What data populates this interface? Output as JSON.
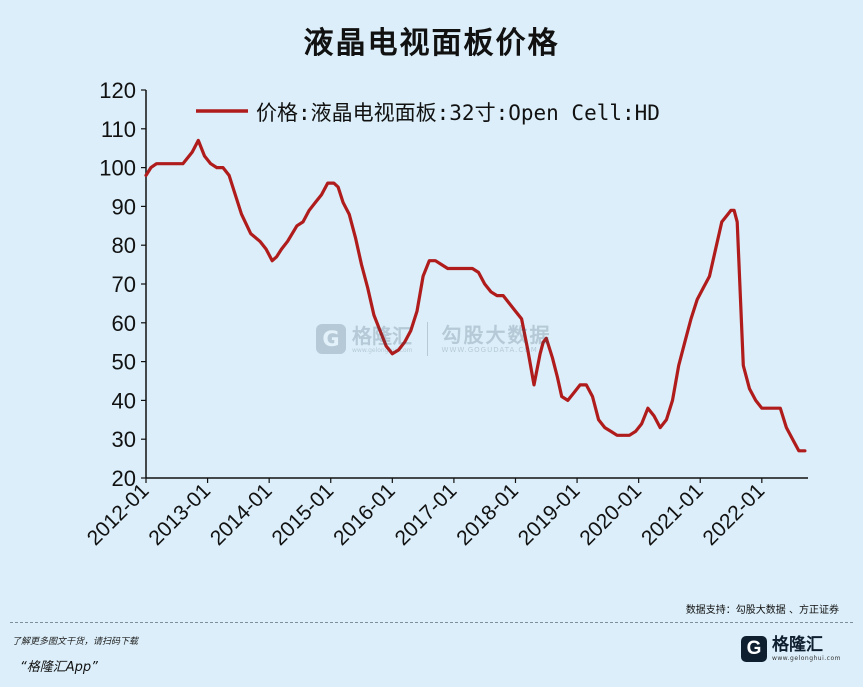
{
  "title": "液晶电视面板价格",
  "source": "数据支持：勾股大数据 、方正证券",
  "promo": {
    "line1": "了解更多图文干货，请扫码下载",
    "line2": "“格隆汇App”"
  },
  "branding": {
    "logo_glyph": "G",
    "logo_name": "格隆汇",
    "logo_url": "www.gelonghui.com",
    "watermark_name2": "勾股大数据",
    "watermark_url2": "WWW.GOGUDATA.COM"
  },
  "colors": {
    "background": "#dbeef9",
    "series": "#b01c1c",
    "axis": "#111111"
  },
  "chart_data": {
    "type": "line",
    "title": "液晶电视面板价格",
    "xlabel": "",
    "ylabel": "",
    "ylim": [
      20,
      120
    ],
    "yticks": [
      20,
      30,
      40,
      50,
      60,
      70,
      80,
      90,
      100,
      110,
      120
    ],
    "xlim": [
      2012.0,
      2022.75
    ],
    "xticks": [
      "2012-01",
      "2013-01",
      "2014-01",
      "2015-01",
      "2016-01",
      "2017-01",
      "2018-01",
      "2019-01",
      "2020-01",
      "2021-01",
      "2022-01"
    ],
    "grid": false,
    "legend_position": "top-left",
    "series": [
      {
        "name": "价格:液晶电视面板:32寸:Open Cell:HD",
        "x": [
          2012.0,
          2012.08,
          2012.17,
          2012.3,
          2012.45,
          2012.6,
          2012.75,
          2012.85,
          2012.95,
          2013.05,
          2013.15,
          2013.25,
          2013.35,
          2013.45,
          2013.55,
          2013.7,
          2013.85,
          2013.95,
          2014.05,
          2014.12,
          2014.2,
          2014.3,
          2014.45,
          2014.55,
          2014.65,
          2014.75,
          2014.85,
          2014.95,
          2015.05,
          2015.12,
          2015.2,
          2015.3,
          2015.4,
          2015.5,
          2015.6,
          2015.7,
          2015.8,
          2015.9,
          2016.0,
          2016.1,
          2016.2,
          2016.3,
          2016.4,
          2016.5,
          2016.6,
          2016.7,
          2016.8,
          2016.9,
          2017.0,
          2017.15,
          2017.3,
          2017.4,
          2017.5,
          2017.6,
          2017.7,
          2017.8,
          2017.9,
          2018.0,
          2018.1,
          2018.2,
          2018.3,
          2018.4,
          2018.45,
          2018.5,
          2018.6,
          2018.68,
          2018.75,
          2018.85,
          2018.95,
          2019.05,
          2019.15,
          2019.25,
          2019.35,
          2019.45,
          2019.55,
          2019.65,
          2019.75,
          2019.85,
          2019.95,
          2020.05,
          2020.15,
          2020.25,
          2020.35,
          2020.45,
          2020.55,
          2020.65,
          2020.75,
          2020.85,
          2020.95,
          2021.05,
          2021.15,
          2021.25,
          2021.35,
          2021.45,
          2021.5,
          2021.55,
          2021.6,
          2021.7,
          2021.8,
          2021.9,
          2022.0,
          2022.1,
          2022.2,
          2022.3,
          2022.4,
          2022.5,
          2022.6,
          2022.7
        ],
        "values": [
          98,
          100,
          101,
          101,
          101,
          101,
          104,
          107,
          103,
          101,
          100,
          100,
          98,
          93,
          88,
          83,
          81,
          79,
          76,
          77,
          79,
          81,
          85,
          86,
          89,
          91,
          93,
          96,
          96,
          95,
          91,
          88,
          82,
          75,
          69,
          62,
          58,
          54,
          52,
          53,
          55,
          58,
          63,
          72,
          76,
          76,
          75,
          74,
          74,
          74,
          74,
          73,
          70,
          68,
          67,
          67,
          65,
          63,
          61,
          53,
          44,
          52,
          55,
          56,
          51,
          46,
          41,
          40,
          42,
          44,
          44,
          41,
          35,
          33,
          32,
          31,
          31,
          31,
          32,
          34,
          38,
          36,
          33,
          35,
          40,
          49,
          55,
          61,
          66,
          69,
          72,
          79,
          86,
          88,
          89,
          89,
          86,
          49,
          43,
          40,
          38,
          38,
          38,
          38,
          33,
          30,
          27,
          27
        ]
      }
    ]
  }
}
